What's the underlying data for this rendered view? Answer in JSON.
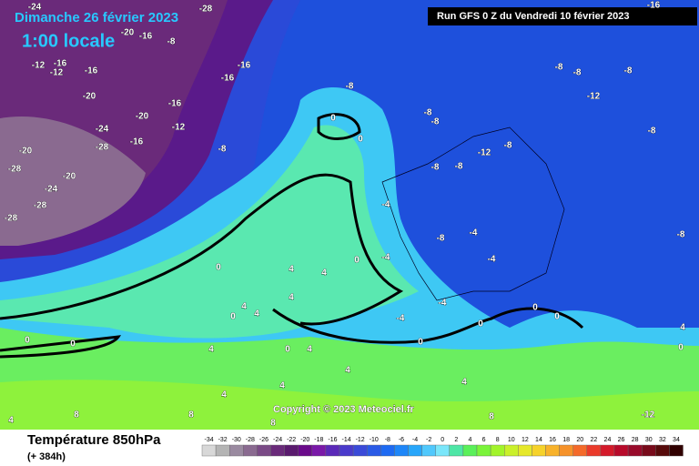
{
  "header": {
    "date": "Dimanche 26 février 2023",
    "time": "1:00 locale",
    "run": "Run GFS 0 Z du Vendredi 10 février 2023",
    "copyright": "Copyright © 2023 Meteociel.fr"
  },
  "footer": {
    "title": "Température 850hPa",
    "lead": "(+ 384h)"
  },
  "scale": {
    "values": [
      -34,
      -32,
      -30,
      -28,
      -26,
      -24,
      -22,
      -20,
      -18,
      -16,
      -14,
      -12,
      -10,
      -8,
      -6,
      -4,
      -2,
      0,
      2,
      4,
      6,
      8,
      10,
      12,
      14,
      16,
      18,
      20,
      22,
      24,
      26,
      28,
      30,
      32,
      34
    ],
    "colors": [
      "#d8d8d8",
      "#b4b4b4",
      "#9a8aa0",
      "#8a6a90",
      "#7a4a86",
      "#6a2a7a",
      "#5a1a6e",
      "#6a0a8a",
      "#7a18a8",
      "#5a28b8",
      "#4a3acb",
      "#3a4ad8",
      "#2a5ae6",
      "#1e6af2",
      "#1e86f8",
      "#28a6fa",
      "#50c8fc",
      "#7ae6fa",
      "#4ee6a6",
      "#5af05a",
      "#7af43a",
      "#a2f42a",
      "#caf02a",
      "#e6e82a",
      "#f6d22a",
      "#f8b22a",
      "#f6922a",
      "#f46a2a",
      "#ea3a2a",
      "#d41a2a",
      "#b80a2a",
      "#980a2a",
      "#780a1a",
      "#560a0a",
      "#300000"
    ]
  },
  "map_labels": [
    -24,
    -28,
    -16,
    -20,
    -16,
    -8,
    -12,
    -16,
    -12,
    -16,
    -16,
    -16,
    -8,
    -8,
    -8,
    -8,
    -12,
    -20,
    -16,
    -20,
    -12,
    -24,
    -28,
    -16,
    -20,
    -8,
    -8,
    -8,
    -8,
    -12,
    -8,
    -8,
    -8,
    -28,
    -20,
    -24,
    -28,
    -28,
    -4,
    -8,
    -4,
    -8,
    -4,
    -4,
    -4,
    -4,
    0,
    0,
    0,
    0,
    4,
    4,
    4,
    0,
    4,
    4,
    0,
    0,
    4,
    0,
    4,
    4,
    4,
    4,
    4,
    0,
    0,
    0,
    0,
    0,
    4,
    8,
    8,
    8,
    4,
    -12,
    8
  ]
}
